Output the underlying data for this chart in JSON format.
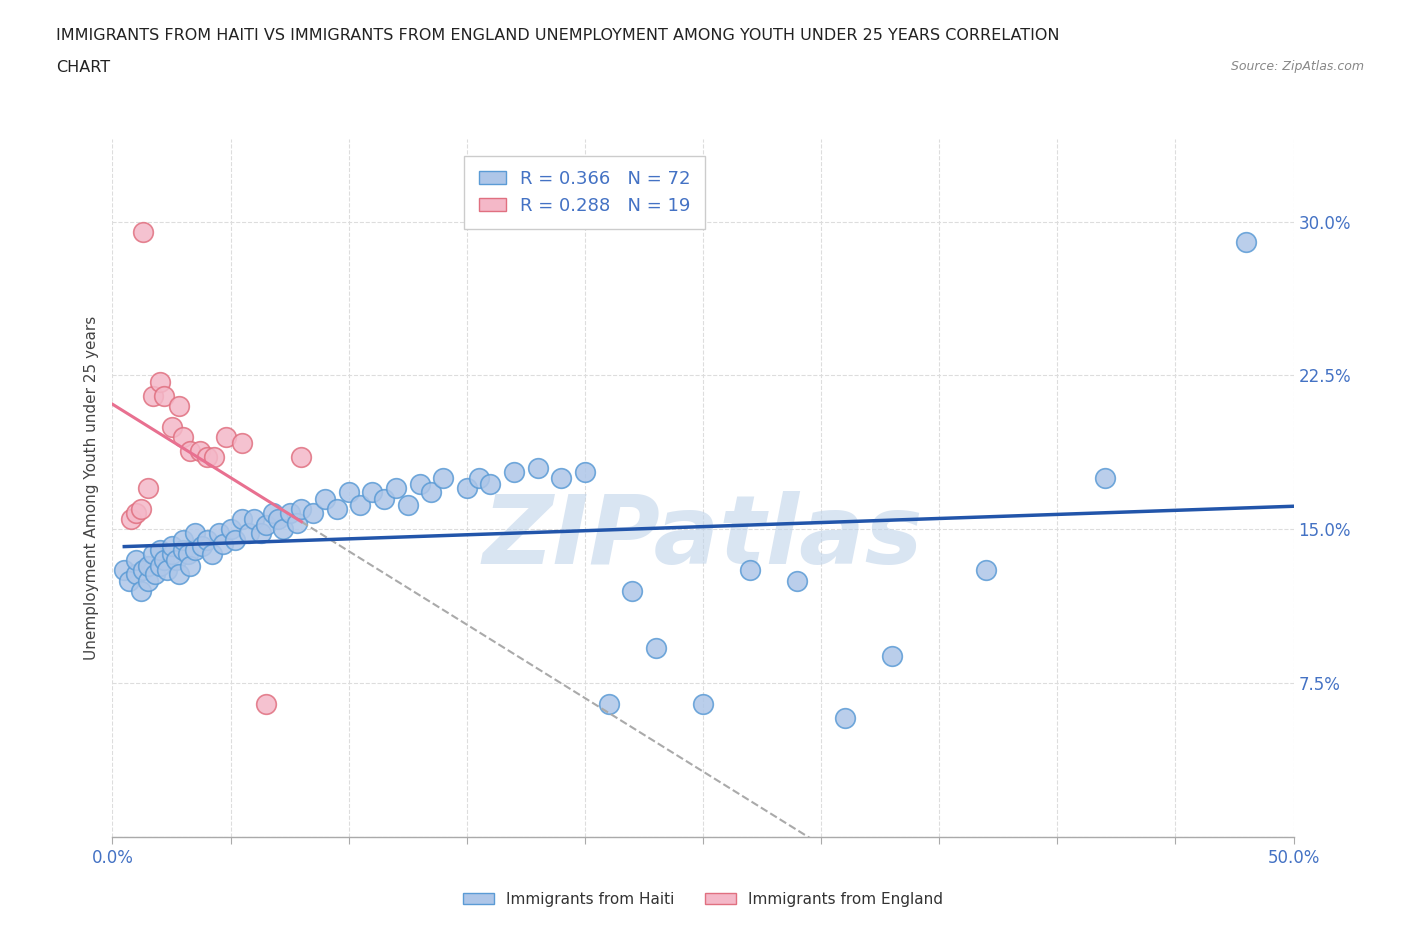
{
  "title_line1": "IMMIGRANTS FROM HAITI VS IMMIGRANTS FROM ENGLAND UNEMPLOYMENT AMONG YOUTH UNDER 25 YEARS CORRELATION",
  "title_line2": "CHART",
  "source_text": "Source: ZipAtlas.com",
  "ylabel": "Unemployment Among Youth under 25 years",
  "xlim": [
    0.0,
    0.5
  ],
  "ylim": [
    0.0,
    0.34
  ],
  "xtick_positions": [
    0.0,
    0.05,
    0.1,
    0.15,
    0.2,
    0.25,
    0.3,
    0.35,
    0.4,
    0.45,
    0.5
  ],
  "xtick_labels_show": {
    "0.0": "0.0%",
    "0.50": "50.0%"
  },
  "yticks": [
    0.0,
    0.075,
    0.15,
    0.225,
    0.3
  ],
  "yticklabels": [
    "",
    "7.5%",
    "15.0%",
    "22.5%",
    "30.0%"
  ],
  "haiti_color": "#aec6e8",
  "haiti_edge": "#5b9bd5",
  "england_color": "#f4b8c8",
  "england_edge": "#e07080",
  "haiti_R": 0.366,
  "haiti_N": 72,
  "england_R": 0.288,
  "england_N": 19,
  "legend_label_haiti": "Immigrants from Haiti",
  "legend_label_england": "Immigrants from England",
  "trendline_haiti_color": "#2255aa",
  "trendline_england_color": "#e87090",
  "watermark": "ZIPatlas",
  "watermark_color": "#c0d4ea",
  "haiti_x": [
    0.005,
    0.007,
    0.01,
    0.01,
    0.012,
    0.013,
    0.015,
    0.015,
    0.017,
    0.018,
    0.02,
    0.02,
    0.022,
    0.023,
    0.025,
    0.025,
    0.027,
    0.028,
    0.03,
    0.03,
    0.032,
    0.033,
    0.035,
    0.035,
    0.038,
    0.04,
    0.042,
    0.045,
    0.047,
    0.05,
    0.052,
    0.055,
    0.058,
    0.06,
    0.063,
    0.065,
    0.068,
    0.07,
    0.072,
    0.075,
    0.078,
    0.08,
    0.085,
    0.09,
    0.095,
    0.1,
    0.105,
    0.11,
    0.115,
    0.12,
    0.125,
    0.13,
    0.135,
    0.14,
    0.15,
    0.155,
    0.16,
    0.17,
    0.18,
    0.19,
    0.2,
    0.21,
    0.22,
    0.23,
    0.25,
    0.27,
    0.29,
    0.31,
    0.33,
    0.37,
    0.42,
    0.48
  ],
  "haiti_y": [
    0.13,
    0.125,
    0.128,
    0.135,
    0.12,
    0.13,
    0.125,
    0.132,
    0.138,
    0.128,
    0.132,
    0.14,
    0.135,
    0.13,
    0.138,
    0.142,
    0.135,
    0.128,
    0.14,
    0.145,
    0.138,
    0.132,
    0.14,
    0.148,
    0.142,
    0.145,
    0.138,
    0.148,
    0.143,
    0.15,
    0.145,
    0.155,
    0.148,
    0.155,
    0.148,
    0.152,
    0.158,
    0.155,
    0.15,
    0.158,
    0.153,
    0.16,
    0.158,
    0.165,
    0.16,
    0.168,
    0.162,
    0.168,
    0.165,
    0.17,
    0.162,
    0.172,
    0.168,
    0.175,
    0.17,
    0.175,
    0.172,
    0.178,
    0.18,
    0.175,
    0.178,
    0.065,
    0.12,
    0.092,
    0.065,
    0.13,
    0.125,
    0.058,
    0.088,
    0.13,
    0.175,
    0.29
  ],
  "england_x": [
    0.008,
    0.01,
    0.012,
    0.013,
    0.015,
    0.017,
    0.02,
    0.022,
    0.025,
    0.028,
    0.03,
    0.033,
    0.037,
    0.04,
    0.043,
    0.048,
    0.055,
    0.065,
    0.08
  ],
  "england_y": [
    0.155,
    0.158,
    0.16,
    0.295,
    0.17,
    0.215,
    0.222,
    0.215,
    0.2,
    0.21,
    0.195,
    0.188,
    0.188,
    0.185,
    0.185,
    0.195,
    0.192,
    0.065,
    0.185
  ],
  "grid_color": "#dddddd",
  "tick_color": "#4472c4",
  "title_color": "#222222",
  "ylabel_color": "#444444",
  "source_color": "#888888"
}
